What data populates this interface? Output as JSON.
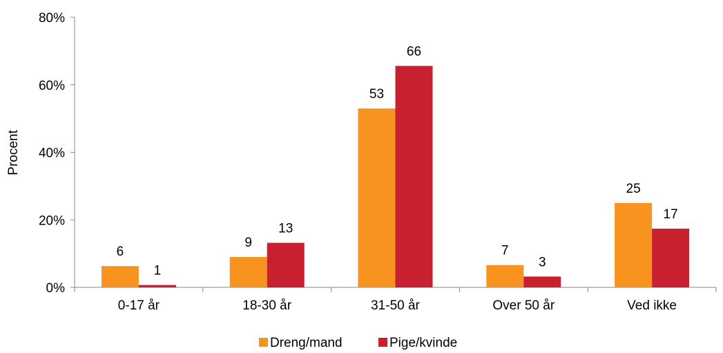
{
  "chart_data": {
    "type": "bar",
    "title": "",
    "xlabel": "",
    "ylabel": "Procent",
    "ylim": [
      0,
      80
    ],
    "yticks": [
      "0%",
      "20%",
      "40%",
      "60%",
      "80%"
    ],
    "yticks_values": [
      0,
      20,
      40,
      60,
      80
    ],
    "categories": [
      "0-17 år",
      "18-30 år",
      "31-50 år",
      "Over 50 år",
      "Ved ikke"
    ],
    "series": [
      {
        "name": "Dreng/mand",
        "color": "#F7931E",
        "values": [
          6.3,
          9,
          53,
          6.6,
          25
        ],
        "labels": [
          "6",
          "9",
          "53",
          "7",
          "25"
        ]
      },
      {
        "name": "Pige/kvinde",
        "color": "#C8202F",
        "values": [
          0.7,
          13.2,
          65.6,
          3.2,
          17.4
        ],
        "labels": [
          "1",
          "13",
          "66",
          "3",
          "17"
        ]
      }
    ],
    "grid": false,
    "legend": "bottom"
  }
}
